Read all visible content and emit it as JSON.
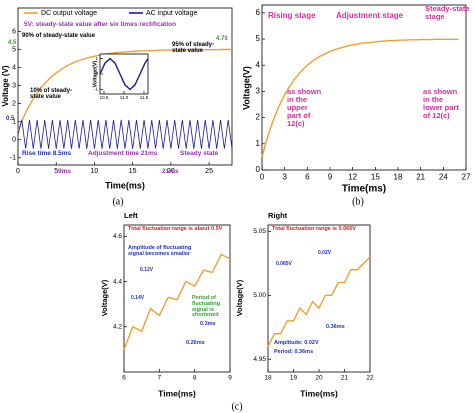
{
  "chart_data": [
    {
      "type": "line",
      "x_label": "Time(ms)",
      "y_label": "Voltage (V)",
      "caption": "(a)",
      "legend": true,
      "xlim": [
        0,
        28
      ],
      "ylim": [
        -1.4,
        7.3
      ],
      "xticks": [
        0,
        5,
        10,
        15,
        20,
        25
      ],
      "yticks": [
        -1,
        0,
        1,
        2,
        3,
        4,
        5,
        6
      ],
      "x": [
        0,
        0.5,
        1,
        1.5,
        2,
        2.5,
        3,
        3.5,
        4,
        4.5,
        5,
        5.5,
        6,
        6.5,
        7,
        7.5,
        8,
        8.5,
        9,
        9.5,
        10,
        10.5,
        11,
        11.5,
        12,
        12.5,
        13,
        13.5,
        14,
        14.5,
        15,
        15.5,
        16,
        16.5,
        17,
        17.5,
        18,
        18.5,
        19,
        19.5,
        20,
        20.5,
        21,
        21.5,
        22,
        22.5,
        23,
        23.5,
        24,
        24.5,
        25,
        25.5,
        26,
        26.5,
        27,
        27.5,
        28
      ],
      "series": [
        {
          "name": "DC output voltage",
          "color": "#f0a030",
          "values": [
            0.5,
            1.03,
            1.5,
            1.91,
            2.27,
            2.59,
            2.87,
            3.12,
            3.34,
            3.54,
            3.71,
            3.86,
            4.0,
            4.11,
            4.22,
            4.31,
            4.39,
            4.46,
            4.53,
            4.58,
            4.63,
            4.67,
            4.71,
            4.75,
            4.78,
            4.8,
            4.83,
            4.85,
            4.86,
            4.88,
            4.89,
            4.91,
            4.92,
            4.93,
            4.94,
            4.94,
            4.95,
            4.96,
            4.96,
            4.97,
            4.97,
            4.97,
            4.98,
            4.98,
            4.98,
            4.98,
            4.99,
            4.99,
            4.99,
            4.99,
            4.99,
            4.99,
            4.99,
            5.0,
            5.0,
            5.0,
            5.0
          ]
        },
        {
          "name": "AC input voltage",
          "color": "#1a1aa0",
          "values": [
            0.3,
            1.1,
            -0.5,
            1.1,
            -0.5,
            1.1,
            -0.5,
            1.1,
            -0.5,
            1.1,
            -0.5,
            1.1,
            -0.5,
            1.1,
            -0.5,
            1.1,
            -0.5,
            1.1,
            -0.5,
            1.1,
            -0.5,
            1.1,
            -0.5,
            1.1,
            -0.5,
            1.1,
            -0.5,
            1.1,
            -0.5,
            1.1,
            -0.5,
            1.1,
            -0.5,
            1.1,
            -0.5,
            1.1,
            -0.5,
            1.1,
            -0.5,
            1.1,
            -0.5,
            1.1,
            -0.5,
            1.1,
            -0.5,
            1.1,
            -0.5,
            1.1,
            -0.5,
            1.1,
            -0.5,
            1.1,
            -0.5,
            1.1,
            -0.5,
            1.1,
            -0.5
          ]
        }
      ],
      "annotations": [
        "5V: steady-state value after six times rectification",
        "90% of steady-state value",
        "95% of steady-state value",
        "10% of steady-state value",
        "Rise time 8.5ms",
        "Adjustment time 21ms",
        "Steady state",
        "9ms",
        "21ms",
        "4.75",
        "4.5",
        "0.5"
      ]
    },
    {
      "type": "line",
      "y_label": "Voltage(V)",
      "xlim": [
        10.4,
        11.6
      ],
      "ylim": [
        -1.3,
        1.3
      ],
      "xticks": [
        10.5,
        {
          "value": 11,
          "label": "11.0"
        },
        11.5
      ],
      "yticks": [
        -1,
        0,
        1
      ],
      "x": [
        10.4,
        10.525,
        10.65,
        10.775,
        10.9,
        11.025,
        11.15,
        11.275,
        11.4,
        11.525,
        11.6
      ],
      "series": [
        {
          "color": "#1a1aa0",
          "values": [
            0,
            0.71,
            1,
            0.71,
            0,
            -0.71,
            -1,
            -0.71,
            0,
            0.71,
            1
          ]
        }
      ]
    },
    {
      "type": "line",
      "x_label": "Time(ms)",
      "y_label": "Voltage(V)",
      "caption": "(b)",
      "xlim": [
        0,
        27
      ],
      "ylim": [
        0,
        6.3
      ],
      "xticks": [
        0,
        3,
        6,
        9,
        12,
        15,
        18,
        21,
        24,
        27
      ],
      "yticks": [
        0,
        1,
        2,
        3,
        4,
        5,
        6
      ],
      "x": [
        0,
        0.5,
        1,
        1.5,
        2,
        2.5,
        3,
        3.5,
        4,
        4.5,
        5,
        5.5,
        6,
        6.5,
        7,
        7.5,
        8,
        8.5,
        9,
        9.5,
        10,
        10.5,
        11,
        11.5,
        12,
        12.5,
        13,
        13.5,
        14,
        14.5,
        15,
        15.5,
        16,
        16.5,
        17,
        17.5,
        18,
        18.5,
        19,
        19.5,
        20,
        20.5,
        21,
        21.5,
        22,
        22.5,
        23,
        23.5,
        24,
        24.5,
        25,
        25.5,
        26
      ],
      "series": [
        {
          "color": "#f0a030",
          "values": [
            0.5,
            1.03,
            1.5,
            1.91,
            2.27,
            2.59,
            2.87,
            3.12,
            3.34,
            3.54,
            3.71,
            3.86,
            4.0,
            4.11,
            4.22,
            4.31,
            4.39,
            4.46,
            4.53,
            4.58,
            4.63,
            4.67,
            4.71,
            4.75,
            4.78,
            4.8,
            4.83,
            4.85,
            4.86,
            4.88,
            4.89,
            4.91,
            4.92,
            4.93,
            4.94,
            4.94,
            4.95,
            4.96,
            4.96,
            4.97,
            4.97,
            4.97,
            4.98,
            4.98,
            4.98,
            4.98,
            4.99,
            4.99,
            4.99,
            4.99,
            4.99,
            4.99,
            4.99
          ]
        }
      ],
      "annotations": [
        "Rising stage",
        "Adjustment stage",
        "Steady-state stage",
        "as shown in the upper part of 12(c)",
        "as shown in the lower part of 12(c)"
      ]
    },
    {
      "type": "line",
      "title": "Left",
      "x_label": "Time(ms)",
      "y_label": "Voltage(V)",
      "caption": "(c)",
      "xlim": [
        6,
        9
      ],
      "ylim": [
        4.0,
        4.65
      ],
      "xticks": [
        6,
        7,
        8,
        9
      ],
      "yticks": [
        4.2,
        4.4,
        4.6
      ],
      "x": [
        6,
        6.25,
        6.5,
        6.75,
        7,
        7.25,
        7.5,
        7.75,
        8,
        8.25,
        8.5,
        8.75,
        9
      ],
      "series": [
        {
          "color": "#f0a030",
          "values": [
            4.1,
            4.2,
            4.18,
            4.28,
            4.25,
            4.33,
            4.32,
            4.4,
            4.38,
            4.45,
            4.44,
            4.52,
            4.5
          ]
        }
      ],
      "annotations": [
        "Total fluctuation range is about 0.5V",
        "Amplitude of fluctuating signal becomes smaller",
        "0.12V",
        "0.14V",
        "0.26ms",
        "Period of fluctuating signal is shortened",
        "0.3ms"
      ]
    },
    {
      "type": "line",
      "title": "Right",
      "x_label": "Time(ms)",
      "y_label": "Voltage(V)",
      "xlim": [
        18,
        22
      ],
      "ylim": [
        4.94,
        5.055
      ],
      "xticks": [
        18,
        19,
        20,
        21,
        22
      ],
      "yticks": [
        4.95,
        {
          "value": 5.0,
          "label": "5.00"
        },
        5.05
      ],
      "x": [
        18,
        18.25,
        18.5,
        18.75,
        19,
        19.25,
        19.5,
        19.75,
        20,
        20.25,
        20.5,
        20.75,
        21,
        21.25,
        21.5,
        21.75,
        22
      ],
      "series": [
        {
          "color": "#f0a030",
          "values": [
            4.96,
            4.97,
            4.97,
            4.98,
            4.98,
            4.99,
            4.985,
            4.995,
            4.99,
            5.0,
            5.0,
            5.01,
            5.01,
            5.02,
            5.02,
            5.025,
            5.03
          ]
        }
      ],
      "annotations": [
        "Total fluctuation range is 0.065V",
        "0.065V",
        "0.02V",
        "0.36ms",
        "Amplitude: 0.02V",
        "Period: 0.36ms"
      ]
    }
  ]
}
